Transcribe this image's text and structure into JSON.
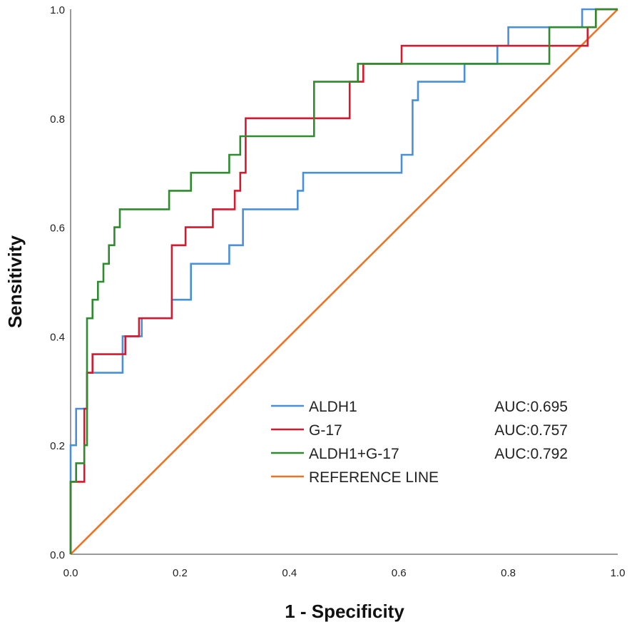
{
  "chart_data": {
    "type": "line",
    "title": "",
    "xlabel": "1 - Specificity",
    "ylabel": "Sensitivity",
    "xlim": [
      0,
      1
    ],
    "ylim": [
      0,
      1
    ],
    "x_ticks": [
      "0.0",
      "0.2",
      "0.4",
      "0.6",
      "0.8",
      "1.0"
    ],
    "y_ticks": [
      "0.0",
      "0.2",
      "0.4",
      "0.6",
      "0.8",
      "1.0"
    ],
    "legend_position": "lower-right",
    "series": [
      {
        "name": "ALDH1",
        "auc_label": "AUC:0.695",
        "color": "#4a90d9",
        "points": [
          [
            0,
            0
          ],
          [
            0,
            0.133
          ],
          [
            0,
            0.2
          ],
          [
            0.01,
            0.2
          ],
          [
            0.01,
            0.267
          ],
          [
            0.03,
            0.267
          ],
          [
            0.03,
            0.333
          ],
          [
            0.095,
            0.333
          ],
          [
            0.095,
            0.4
          ],
          [
            0.13,
            0.4
          ],
          [
            0.13,
            0.433
          ],
          [
            0.185,
            0.433
          ],
          [
            0.185,
            0.467
          ],
          [
            0.22,
            0.467
          ],
          [
            0.22,
            0.533
          ],
          [
            0.29,
            0.533
          ],
          [
            0.29,
            0.567
          ],
          [
            0.315,
            0.567
          ],
          [
            0.315,
            0.633
          ],
          [
            0.415,
            0.633
          ],
          [
            0.415,
            0.667
          ],
          [
            0.425,
            0.667
          ],
          [
            0.425,
            0.7
          ],
          [
            0.605,
            0.7
          ],
          [
            0.605,
            0.733
          ],
          [
            0.625,
            0.733
          ],
          [
            0.625,
            0.833
          ],
          [
            0.635,
            0.833
          ],
          [
            0.635,
            0.867
          ],
          [
            0.72,
            0.867
          ],
          [
            0.72,
            0.9
          ],
          [
            0.78,
            0.9
          ],
          [
            0.78,
            0.933
          ],
          [
            0.8,
            0.933
          ],
          [
            0.8,
            0.967
          ],
          [
            0.935,
            0.967
          ],
          [
            0.935,
            1
          ],
          [
            1,
            1
          ]
        ]
      },
      {
        "name": "G-17",
        "auc_label": "AUC:0.757",
        "color": "#d7192f",
        "points": [
          [
            0,
            0
          ],
          [
            0,
            0.133
          ],
          [
            0.025,
            0.133
          ],
          [
            0.025,
            0.267
          ],
          [
            0.03,
            0.267
          ],
          [
            0.03,
            0.333
          ],
          [
            0.04,
            0.333
          ],
          [
            0.04,
            0.367
          ],
          [
            0.1,
            0.367
          ],
          [
            0.1,
            0.4
          ],
          [
            0.125,
            0.4
          ],
          [
            0.125,
            0.433
          ],
          [
            0.185,
            0.433
          ],
          [
            0.185,
            0.567
          ],
          [
            0.21,
            0.567
          ],
          [
            0.21,
            0.6
          ],
          [
            0.26,
            0.6
          ],
          [
            0.26,
            0.633
          ],
          [
            0.3,
            0.633
          ],
          [
            0.3,
            0.667
          ],
          [
            0.31,
            0.667
          ],
          [
            0.31,
            0.7
          ],
          [
            0.32,
            0.7
          ],
          [
            0.32,
            0.8
          ],
          [
            0.51,
            0.8
          ],
          [
            0.51,
            0.867
          ],
          [
            0.535,
            0.867
          ],
          [
            0.535,
            0.9
          ],
          [
            0.605,
            0.9
          ],
          [
            0.605,
            0.933
          ],
          [
            0.945,
            0.933
          ],
          [
            0.945,
            0.967
          ],
          [
            0.96,
            0.967
          ],
          [
            0.96,
            1
          ],
          [
            1,
            1
          ]
        ]
      },
      {
        "name": "ALDH1+G-17",
        "auc_label": "AUC:0.792",
        "color": "#2e8b2e",
        "points": [
          [
            0,
            0
          ],
          [
            0,
            0.133
          ],
          [
            0.01,
            0.133
          ],
          [
            0.01,
            0.167
          ],
          [
            0.025,
            0.167
          ],
          [
            0.025,
            0.2
          ],
          [
            0.03,
            0.2
          ],
          [
            0.03,
            0.433
          ],
          [
            0.04,
            0.433
          ],
          [
            0.04,
            0.467
          ],
          [
            0.05,
            0.467
          ],
          [
            0.05,
            0.5
          ],
          [
            0.06,
            0.5
          ],
          [
            0.06,
            0.533
          ],
          [
            0.07,
            0.533
          ],
          [
            0.07,
            0.567
          ],
          [
            0.08,
            0.567
          ],
          [
            0.08,
            0.6
          ],
          [
            0.09,
            0.6
          ],
          [
            0.09,
            0.633
          ],
          [
            0.18,
            0.633
          ],
          [
            0.18,
            0.667
          ],
          [
            0.22,
            0.667
          ],
          [
            0.22,
            0.7
          ],
          [
            0.29,
            0.7
          ],
          [
            0.29,
            0.733
          ],
          [
            0.31,
            0.733
          ],
          [
            0.31,
            0.767
          ],
          [
            0.445,
            0.767
          ],
          [
            0.445,
            0.867
          ],
          [
            0.525,
            0.867
          ],
          [
            0.525,
            0.9
          ],
          [
            0.875,
            0.9
          ],
          [
            0.875,
            0.967
          ],
          [
            0.96,
            0.967
          ],
          [
            0.96,
            1
          ],
          [
            1,
            1
          ]
        ]
      },
      {
        "name": "REFERENCE LINE",
        "auc_label": "",
        "color": "#f07322",
        "points": [
          [
            0,
            0
          ],
          [
            1,
            1
          ]
        ]
      }
    ]
  }
}
